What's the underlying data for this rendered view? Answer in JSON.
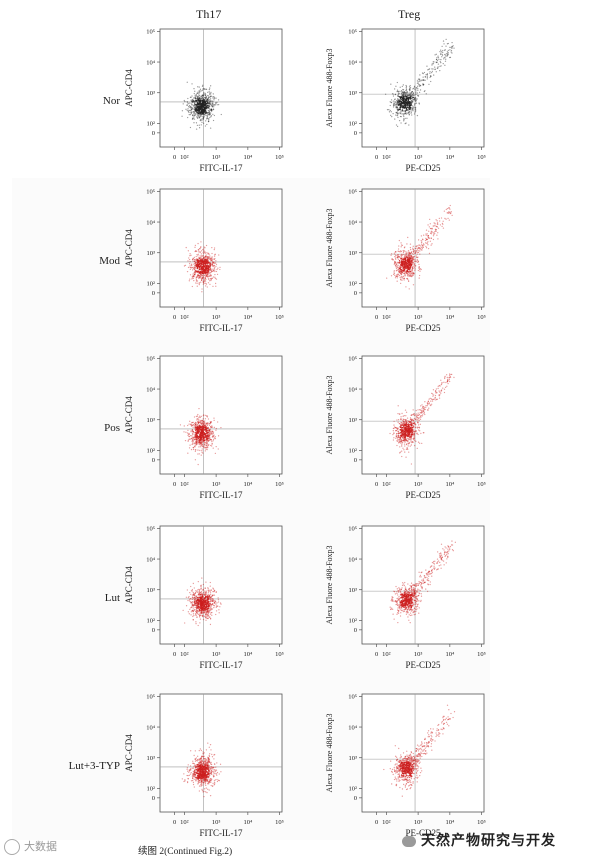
{
  "columns": {
    "left": "Th17",
    "right": "Treg"
  },
  "rows": [
    {
      "label": "Nor",
      "color": "#222222"
    },
    {
      "label": "Mod",
      "color": "#cc1f1f"
    },
    {
      "label": "Pos",
      "color": "#cc1f1f"
    },
    {
      "label": "Lut",
      "color": "#cc1f1f"
    },
    {
      "label": "Lut+3-TYP",
      "color": "#cc1f1f"
    }
  ],
  "caption": "续图 2(Continued Fig.2)",
  "watermarks": {
    "left": "大数据",
    "right": "天然产物研究与开发"
  },
  "chart_data": [
    {
      "type": "scatter",
      "panel": "Th17",
      "xlabel": "FITC-IL-17",
      "ylabel": "APC-CD4",
      "x_scale": "biexponential",
      "y_scale": "biexponential",
      "x_ticks": [
        "0",
        "10²",
        "10³",
        "10⁴",
        "10⁵"
      ],
      "y_ticks": [
        "0",
        "10²",
        "10³",
        "10⁴",
        "10⁵"
      ],
      "quadrant_gate": {
        "x": 400,
        "y": 500
      },
      "clusters": [
        {
          "row": "Nor",
          "center_x": 350,
          "center_y": 350
        },
        {
          "row": "Mod",
          "center_x": 380,
          "center_y": 350
        },
        {
          "row": "Pos",
          "center_x": 350,
          "center_y": 350
        },
        {
          "row": "Lut",
          "center_x": 380,
          "center_y": 360
        },
        {
          "row": "Lut+3-TYP",
          "center_x": 380,
          "center_y": 350
        }
      ]
    },
    {
      "type": "scatter",
      "panel": "Treg",
      "xlabel": "PE-CD25",
      "ylabel": "Alexa Fluore 488-Foxp3",
      "x_scale": "biexponential",
      "y_scale": "biexponential",
      "x_ticks": [
        "0",
        "10²",
        "10³",
        "10⁴",
        "10⁵"
      ],
      "y_ticks": [
        "0",
        "10²",
        "10³",
        "10⁴",
        "10⁵"
      ],
      "quadrant_gate": {
        "x": 800,
        "y": 900
      },
      "clusters": [
        {
          "row": "Nor",
          "center_x": 380,
          "center_y": 450
        },
        {
          "row": "Mod",
          "center_x": 400,
          "center_y": 400
        },
        {
          "row": "Pos",
          "center_x": 420,
          "center_y": 420
        },
        {
          "row": "Lut",
          "center_x": 420,
          "center_y": 430
        },
        {
          "row": "Lut+3-TYP",
          "center_x": 420,
          "center_y": 420
        }
      ]
    }
  ]
}
